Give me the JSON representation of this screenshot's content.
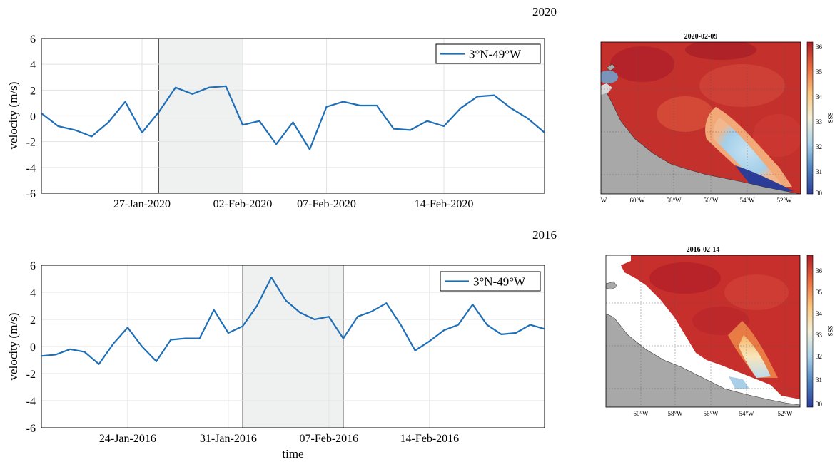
{
  "panels": [
    {
      "year_label": "2020",
      "line_chart": {
        "type": "line",
        "ylabel": "velocity (m/s)",
        "xlabel": "",
        "ylim": [
          -6,
          6
        ],
        "yticks": [
          "6",
          "4",
          "2",
          "0",
          "-2",
          "-4",
          "-6"
        ],
        "x_domain": [
          "2020-01-21",
          "2020-02-20"
        ],
        "xticks": [
          {
            "date": "2020-01-27",
            "label": "27-Jan-2020"
          },
          {
            "date": "2020-02-02",
            "label": "02-Feb-2020"
          },
          {
            "date": "2020-02-07",
            "label": "07-Feb-2020"
          },
          {
            "date": "2020-02-14",
            "label": "14-Feb-2020"
          }
        ],
        "highlight": [
          "2020-01-28",
          "2020-02-02"
        ],
        "legend": "3°N-49°W",
        "line_color": "#1f6fb8",
        "x": [
          "2020-01-21",
          "2020-01-22",
          "2020-01-23",
          "2020-01-24",
          "2020-01-25",
          "2020-01-26",
          "2020-01-27",
          "2020-01-28",
          "2020-01-29",
          "2020-01-30",
          "2020-01-31",
          "2020-02-01",
          "2020-02-02",
          "2020-02-03",
          "2020-02-04",
          "2020-02-05",
          "2020-02-06",
          "2020-02-07",
          "2020-02-08",
          "2020-02-09",
          "2020-02-10",
          "2020-02-11",
          "2020-02-12",
          "2020-02-13",
          "2020-02-14",
          "2020-02-15",
          "2020-02-16",
          "2020-02-17",
          "2020-02-18",
          "2020-02-19",
          "2020-02-20"
        ],
        "y": [
          0.2,
          -0.8,
          -1.1,
          -1.6,
          -0.5,
          1.1,
          -1.3,
          0.3,
          2.2,
          1.7,
          2.2,
          2.3,
          -0.7,
          -0.4,
          -2.2,
          -0.5,
          -2.6,
          0.7,
          1.1,
          0.8,
          0.8,
          -1.0,
          -1.1,
          -0.4,
          -0.8,
          0.6,
          1.5,
          1.6,
          0.6,
          -0.2,
          -1.3
        ]
      },
      "map": {
        "title": "2020-02-09",
        "lon_labels": [
          "W",
          "60°W",
          "58°W",
          "56°W",
          "54°W",
          "52°W"
        ],
        "colorbar_ticks": [
          "36",
          "35",
          "34",
          "33",
          "32",
          "31",
          "30"
        ],
        "colorbar_label": "SSS"
      }
    },
    {
      "year_label": "2016",
      "line_chart": {
        "type": "line",
        "ylabel": "velocity (m/s)",
        "xlabel": "time",
        "ylim": [
          -6,
          6
        ],
        "yticks": [
          "6",
          "4",
          "2",
          "0",
          "-2",
          "-4",
          "-6"
        ],
        "x_domain": [
          "2016-01-18",
          "2016-02-22"
        ],
        "xticks": [
          {
            "date": "2016-01-24",
            "label": "24-Jan-2016"
          },
          {
            "date": "2016-01-31",
            "label": "31-Jan-2016"
          },
          {
            "date": "2016-02-07",
            "label": "07-Feb-2016"
          },
          {
            "date": "2016-02-14",
            "label": "14-Feb-2016"
          }
        ],
        "highlight": [
          "2016-02-01",
          "2016-02-08"
        ],
        "legend": "3°N-49°W",
        "line_color": "#1f6fb8",
        "x": [
          "2016-01-18",
          "2016-01-19",
          "2016-01-20",
          "2016-01-21",
          "2016-01-22",
          "2016-01-23",
          "2016-01-24",
          "2016-01-25",
          "2016-01-26",
          "2016-01-27",
          "2016-01-28",
          "2016-01-29",
          "2016-01-30",
          "2016-01-31",
          "2016-02-01",
          "2016-02-02",
          "2016-02-03",
          "2016-02-04",
          "2016-02-05",
          "2016-02-06",
          "2016-02-07",
          "2016-02-08",
          "2016-02-09",
          "2016-02-10",
          "2016-02-11",
          "2016-02-12",
          "2016-02-13",
          "2016-02-14",
          "2016-02-15",
          "2016-02-16",
          "2016-02-17",
          "2016-02-18",
          "2016-02-19",
          "2016-02-20",
          "2016-02-21",
          "2016-02-22"
        ],
        "y": [
          -0.7,
          -0.6,
          -0.2,
          -0.4,
          -1.3,
          0.2,
          1.4,
          0.0,
          -1.1,
          0.5,
          0.6,
          0.6,
          2.7,
          1.0,
          1.5,
          3.0,
          5.1,
          3.4,
          2.5,
          2.0,
          2.2,
          0.6,
          2.2,
          2.6,
          3.2,
          1.6,
          -0.3,
          0.4,
          1.2,
          1.6,
          3.1,
          1.6,
          0.9,
          1.0,
          1.6,
          1.3
        ]
      },
      "map": {
        "title": "2016-02-14",
        "lon_labels": [
          "60°W",
          "58°W",
          "56°W",
          "54°W",
          "52°W"
        ],
        "colorbar_ticks": [
          "36",
          "35",
          "34",
          "33",
          "32",
          "31",
          "30"
        ],
        "colorbar_label": "SSS"
      }
    }
  ]
}
